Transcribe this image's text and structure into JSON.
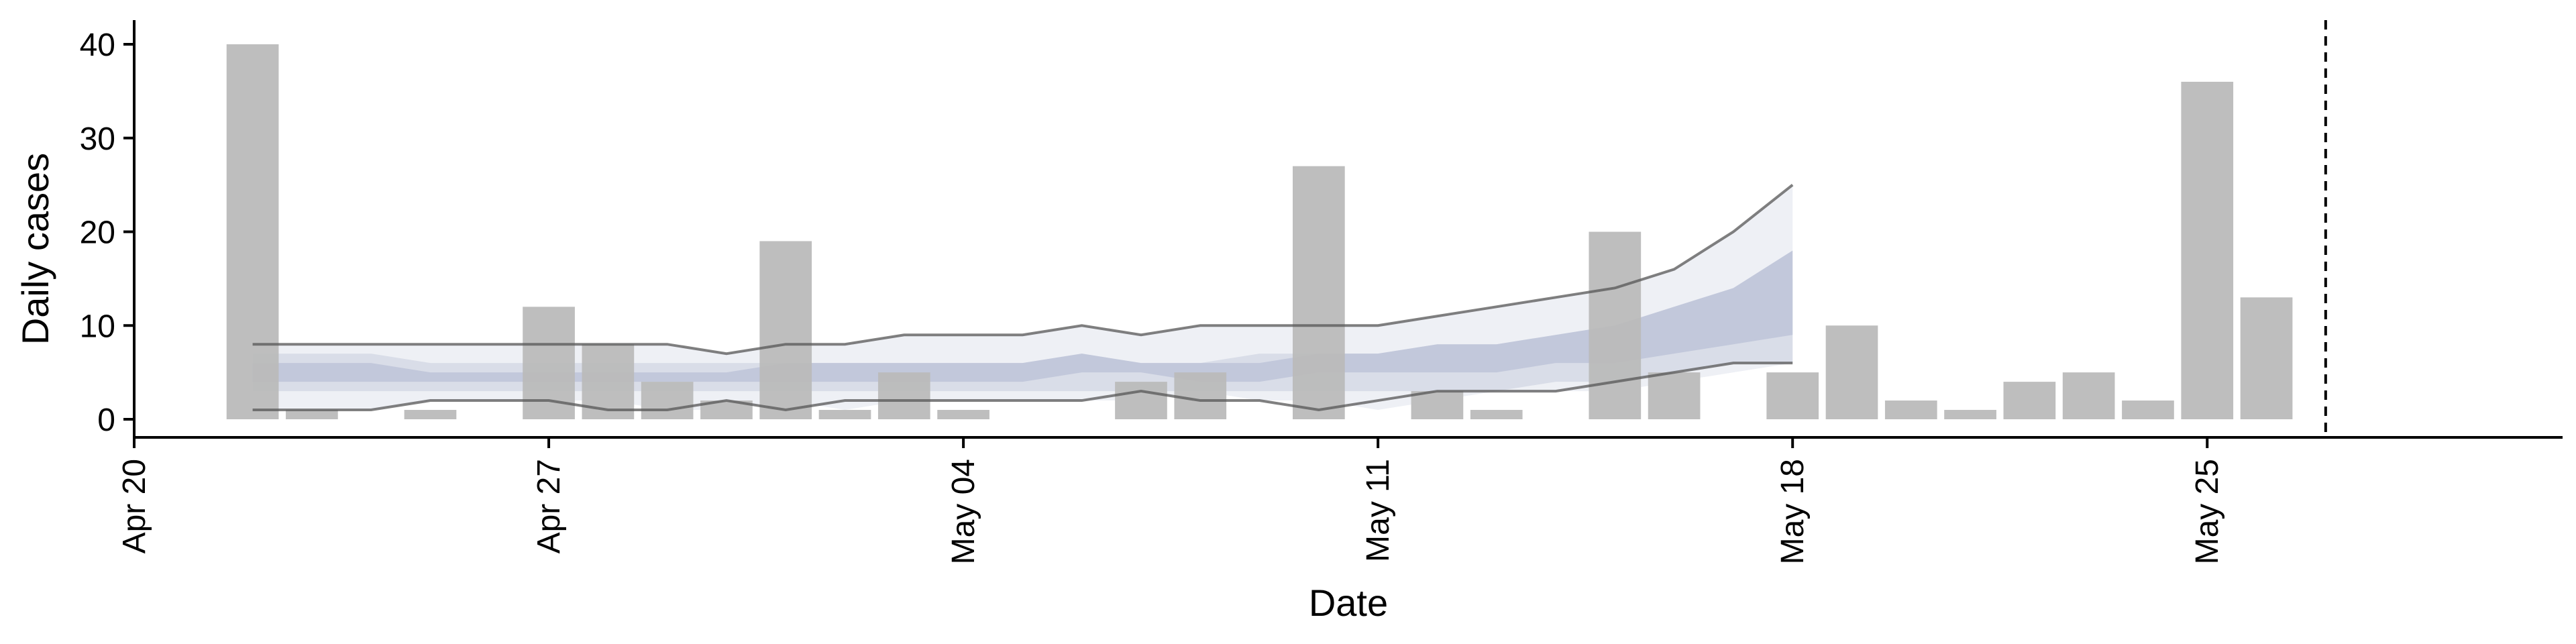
{
  "chart_data": {
    "type": "bar",
    "xlabel": "Date",
    "ylabel": "Daily cases",
    "xlim": [
      "2020-04-20",
      "2020-05-31"
    ],
    "ylim": [
      0,
      42
    ],
    "x_ticks": [
      {
        "date": "2020-04-20",
        "label": "Apr 20"
      },
      {
        "date": "2020-04-27",
        "label": "Apr 27"
      },
      {
        "date": "2020-05-04",
        "label": "May 04"
      },
      {
        "date": "2020-05-11",
        "label": "May 11"
      },
      {
        "date": "2020-05-18",
        "label": "May 18"
      },
      {
        "date": "2020-05-25",
        "label": "May 25"
      }
    ],
    "y_ticks": [
      0,
      10,
      20,
      30,
      40
    ],
    "bars": {
      "color": "#bbbbbb",
      "dates": [
        "2020-04-22",
        "2020-04-23",
        "2020-04-24",
        "2020-04-25",
        "2020-04-26",
        "2020-04-27",
        "2020-04-28",
        "2020-04-29",
        "2020-04-30",
        "2020-05-01",
        "2020-05-02",
        "2020-05-03",
        "2020-05-04",
        "2020-05-05",
        "2020-05-06",
        "2020-05-07",
        "2020-05-08",
        "2020-05-09",
        "2020-05-10",
        "2020-05-11",
        "2020-05-12",
        "2020-05-13",
        "2020-05-14",
        "2020-05-15",
        "2020-05-16",
        "2020-05-17",
        "2020-05-18",
        "2020-05-19",
        "2020-05-20",
        "2020-05-21",
        "2020-05-22",
        "2020-05-23",
        "2020-05-24",
        "2020-05-25",
        "2020-05-26"
      ],
      "values": [
        40,
        1,
        0,
        1,
        0,
        12,
        8,
        4,
        2,
        19,
        1,
        5,
        1,
        0,
        0,
        4,
        5,
        0,
        27,
        0,
        3,
        1,
        0,
        20,
        5,
        0,
        5,
        10,
        2,
        1,
        4,
        5,
        2,
        36,
        13
      ]
    },
    "bands": {
      "dates": [
        "2020-04-22",
        "2020-04-23",
        "2020-04-24",
        "2020-04-25",
        "2020-04-26",
        "2020-04-27",
        "2020-04-28",
        "2020-04-29",
        "2020-04-30",
        "2020-05-01",
        "2020-05-02",
        "2020-05-03",
        "2020-05-04",
        "2020-05-05",
        "2020-05-06",
        "2020-05-07",
        "2020-05-08",
        "2020-05-09",
        "2020-05-10",
        "2020-05-11",
        "2020-05-12",
        "2020-05-13",
        "2020-05-14",
        "2020-05-15",
        "2020-05-16",
        "2020-05-17",
        "2020-05-18"
      ],
      "outer_lower": [
        1,
        1,
        1,
        2,
        2,
        2,
        2,
        1,
        1,
        2,
        1,
        2,
        2,
        2,
        2,
        2,
        3,
        2,
        2,
        1,
        2,
        3,
        3,
        3,
        4,
        5,
        6
      ],
      "outer_upper": [
        8,
        8,
        8,
        8,
        8,
        8,
        8,
        8,
        7,
        8,
        8,
        9,
        9,
        9,
        10,
        9,
        10,
        10,
        10,
        10,
        11,
        12,
        13,
        14,
        16,
        20,
        25
      ],
      "mid_lower": [
        3,
        3,
        3,
        3,
        3,
        3,
        3,
        3,
        3,
        3,
        3,
        3,
        3,
        3,
        3,
        3,
        3,
        3,
        3,
        3,
        3,
        3,
        4,
        4,
        5,
        6,
        6
      ],
      "mid_upper": [
        7,
        7,
        7,
        6,
        6,
        6,
        6,
        6,
        6,
        6,
        6,
        6,
        6,
        6,
        7,
        6,
        6,
        7,
        7,
        7,
        8,
        8,
        9,
        10,
        11,
        13,
        15
      ],
      "inner_lower": [
        4,
        4,
        4,
        4,
        4,
        4,
        4,
        4,
        4,
        4,
        4,
        4,
        4,
        4,
        5,
        5,
        4,
        4,
        5,
        5,
        5,
        5,
        6,
        6,
        7,
        8,
        9
      ],
      "inner_upper": [
        6,
        6,
        6,
        5,
        5,
        5,
        5,
        5,
        5,
        6,
        6,
        6,
        6,
        6,
        7,
        6,
        6,
        6,
        7,
        7,
        8,
        8,
        9,
        10,
        12,
        14,
        18
      ],
      "colors": [
        "#eef0f5",
        "#d9dde8",
        "#c2c8db"
      ]
    },
    "lines": [
      {
        "dates": [
          "2020-04-22",
          "2020-04-23",
          "2020-04-24",
          "2020-04-25",
          "2020-04-26",
          "2020-04-27",
          "2020-04-28",
          "2020-04-29",
          "2020-04-30",
          "2020-05-01",
          "2020-05-02",
          "2020-05-03",
          "2020-05-04",
          "2020-05-05",
          "2020-05-06",
          "2020-05-07",
          "2020-05-08",
          "2020-05-09",
          "2020-05-10",
          "2020-05-11",
          "2020-05-12",
          "2020-05-13",
          "2020-05-14",
          "2020-05-15",
          "2020-05-16",
          "2020-05-17",
          "2020-05-18"
        ],
        "values": [
          8,
          8,
          8,
          8,
          8,
          8,
          8,
          8,
          7,
          8,
          8,
          9,
          9,
          9,
          10,
          9,
          10,
          10,
          10,
          10,
          11,
          12,
          13,
          14,
          16,
          20,
          25
        ]
      },
      {
        "dates": [
          "2020-04-22",
          "2020-04-23",
          "2020-04-24",
          "2020-04-25",
          "2020-04-26",
          "2020-04-27",
          "2020-04-28",
          "2020-04-29",
          "2020-04-30",
          "2020-05-01",
          "2020-05-02",
          "2020-05-03",
          "2020-05-04",
          "2020-05-05",
          "2020-05-06",
          "2020-05-07",
          "2020-05-08",
          "2020-05-09",
          "2020-05-10",
          "2020-05-11",
          "2020-05-12",
          "2020-05-13",
          "2020-05-14",
          "2020-05-15",
          "2020-05-16",
          "2020-05-17",
          "2020-05-18"
        ],
        "values": [
          1,
          1,
          1,
          2,
          2,
          2,
          1,
          1,
          2,
          1,
          2,
          2,
          2,
          2,
          2,
          3,
          2,
          2,
          1,
          2,
          3,
          3,
          3,
          4,
          5,
          6,
          6
        ]
      }
    ],
    "vline": {
      "date": "2020-05-27",
      "style": "dashed"
    },
    "grid": false,
    "spines": [
      "left",
      "bottom"
    ]
  }
}
